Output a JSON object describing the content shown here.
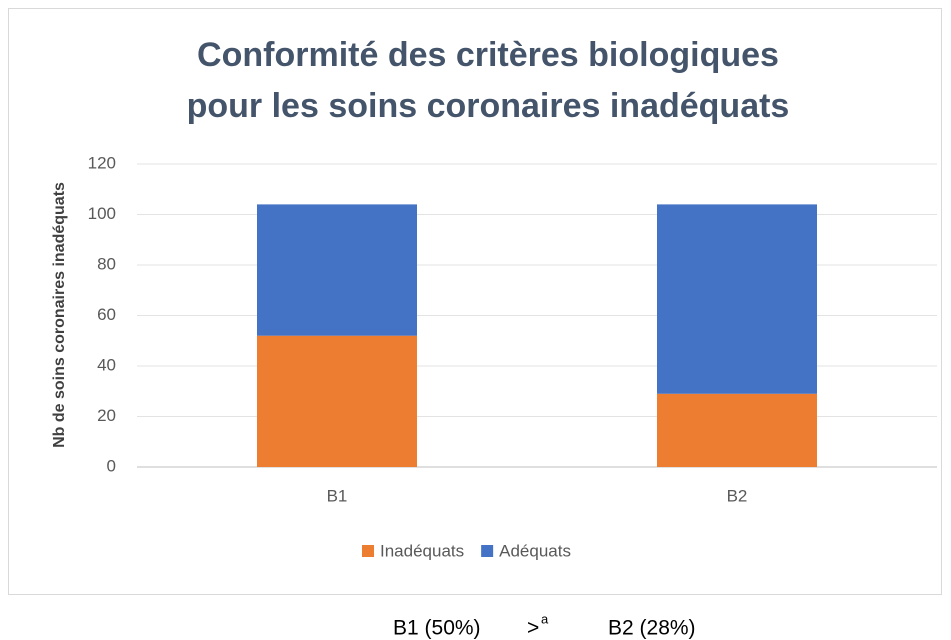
{
  "chart_data": {
    "type": "stacked_bar",
    "title": [
      "Conformité des critères biologiques",
      "pour les soins coronaires inadéquats"
    ],
    "y_label": "Nb de soins coronaires inadéquats",
    "categories": [
      "B1",
      "B2"
    ],
    "series": [
      {
        "name": "Inadéquats",
        "color": "#ed7d31",
        "values": [
          52,
          29
        ]
      },
      {
        "name": "Adéquats",
        "color": "#4472c4",
        "values": [
          52,
          75
        ]
      }
    ],
    "ylim": [
      0,
      120
    ],
    "yticks": [
      0,
      20,
      40,
      60,
      80,
      100,
      120
    ],
    "grid": true,
    "legend": "bottom"
  },
  "footnote": {
    "left": "B1 (50%)",
    "operator": ">",
    "superscript": "a",
    "right": "B2 (28%)"
  }
}
